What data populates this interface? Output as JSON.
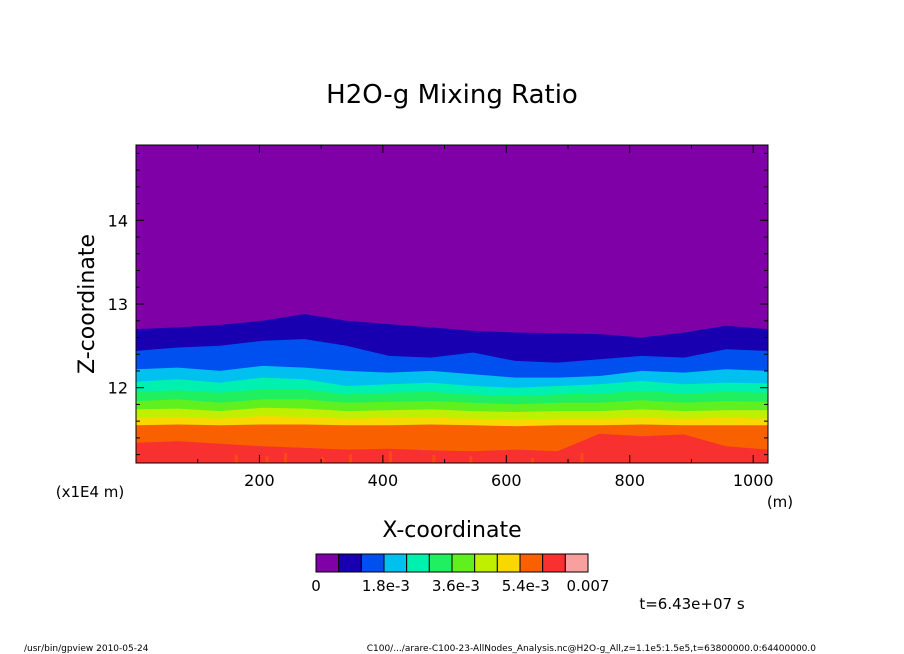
{
  "chart_data": {
    "type": "heatmap",
    "title": "H2O-g Mixing Ratio",
    "xlabel": "X-coordinate",
    "ylabel": "Z-coordinate",
    "x_unit": "(m)",
    "y_unit": "(x1E4 m)",
    "xlim": [
      0,
      1024
    ],
    "ylim": [
      11.1,
      14.9
    ],
    "x_ticks": [
      200,
      400,
      600,
      800,
      1000
    ],
    "y_ticks": [
      12,
      13,
      14
    ],
    "x_ticklabels": [
      "200",
      "400",
      "600",
      "800",
      "1000"
    ],
    "y_ticklabels": [
      "12",
      "13",
      "14"
    ],
    "colorbar": {
      "colors": [
        "#8000a8",
        "#1800b0",
        "#0050f0",
        "#00c0f0",
        "#00f0b0",
        "#20f060",
        "#60f020",
        "#c0f000",
        "#f8d800",
        "#f86000",
        "#f83030",
        "#f8a0a0"
      ],
      "tick_labels": [
        "0",
        "1.8e-3",
        "3.6e-3",
        "5.4e-3",
        "0.007"
      ],
      "tick_values": [
        0,
        0.0018,
        0.0036,
        0.0054,
        0.007
      ]
    },
    "contour_levels": [
      0,
      0.0006,
      0.0012,
      0.0018,
      0.0024,
      0.003,
      0.0036,
      0.0042,
      0.0048,
      0.0054,
      0.006,
      0.007
    ],
    "contour_fields": [
      {
        "level_index": 1,
        "color": "#1800b0",
        "z_top": [
          12.7,
          12.72,
          12.75,
          12.8,
          12.88,
          12.8,
          12.76,
          12.72,
          12.68,
          12.66,
          12.65,
          12.64,
          12.6,
          12.66,
          12.74,
          12.7
        ]
      },
      {
        "level_index": 2,
        "color": "#0050f0",
        "z_top": [
          12.44,
          12.48,
          12.5,
          12.56,
          12.58,
          12.5,
          12.38,
          12.36,
          12.42,
          12.32,
          12.3,
          12.34,
          12.38,
          12.36,
          12.46,
          12.44
        ]
      },
      {
        "level_index": 3,
        "color": "#00c0f0",
        "z_top": [
          12.22,
          12.24,
          12.2,
          12.26,
          12.24,
          12.2,
          12.18,
          12.2,
          12.16,
          12.12,
          12.12,
          12.14,
          12.2,
          12.18,
          12.22,
          12.2
        ]
      },
      {
        "level_index": 4,
        "color": "#00f0b0",
        "z_top": [
          12.07,
          12.1,
          12.06,
          12.12,
          12.1,
          12.02,
          12.04,
          12.06,
          12.02,
          12.0,
          12.02,
          12.04,
          12.08,
          12.04,
          12.06,
          12.05
        ]
      },
      {
        "level_index": 5,
        "color": "#20f060",
        "z_top": [
          11.95,
          11.97,
          11.94,
          11.98,
          11.98,
          11.92,
          11.94,
          11.95,
          11.92,
          11.9,
          11.92,
          11.93,
          11.96,
          11.93,
          11.95,
          11.94
        ]
      },
      {
        "level_index": 6,
        "color": "#60f020",
        "z_top": [
          11.84,
          11.86,
          11.82,
          11.86,
          11.86,
          11.82,
          11.83,
          11.84,
          11.82,
          11.8,
          11.82,
          11.82,
          11.85,
          11.82,
          11.84,
          11.83
        ]
      },
      {
        "level_index": 7,
        "color": "#c0f000",
        "z_top": [
          11.74,
          11.75,
          11.72,
          11.76,
          11.75,
          11.72,
          11.73,
          11.74,
          11.72,
          11.71,
          11.72,
          11.72,
          11.74,
          11.72,
          11.73,
          11.73
        ]
      },
      {
        "level_index": 8,
        "color": "#f8d800",
        "z_top": [
          11.64,
          11.65,
          11.63,
          11.66,
          11.65,
          11.63,
          11.64,
          11.64,
          11.63,
          11.62,
          11.63,
          11.63,
          11.64,
          11.63,
          11.64,
          11.63
        ]
      },
      {
        "level_index": 9,
        "color": "#f86000",
        "z_top": [
          11.55,
          11.56,
          11.55,
          11.56,
          11.56,
          11.55,
          11.55,
          11.56,
          11.55,
          11.54,
          11.55,
          11.55,
          11.56,
          11.55,
          11.55,
          11.55
        ]
      },
      {
        "level_index": 10,
        "color": "#f83030",
        "z_top": [
          11.34,
          11.36,
          11.33,
          11.3,
          11.28,
          11.26,
          11.27,
          11.25,
          11.24,
          11.26,
          11.24,
          11.45,
          11.42,
          11.44,
          11.3,
          11.26
        ]
      }
    ],
    "contour_x": [
      0,
      68,
      136,
      205,
      273,
      341,
      410,
      478,
      546,
      614,
      683,
      751,
      819,
      888,
      956,
      1024
    ],
    "time_label": "t=6.43e+07 s",
    "grid": false,
    "legend": "bottom"
  },
  "footer": {
    "program": "/usr/bin/gpview  2010-05-24",
    "source": "C100/.../arare-C100-23-AllNodes_Analysis.nc@H2O-g_All,z=1.1e5:1.5e5,t=63800000.0:64400000.0"
  }
}
